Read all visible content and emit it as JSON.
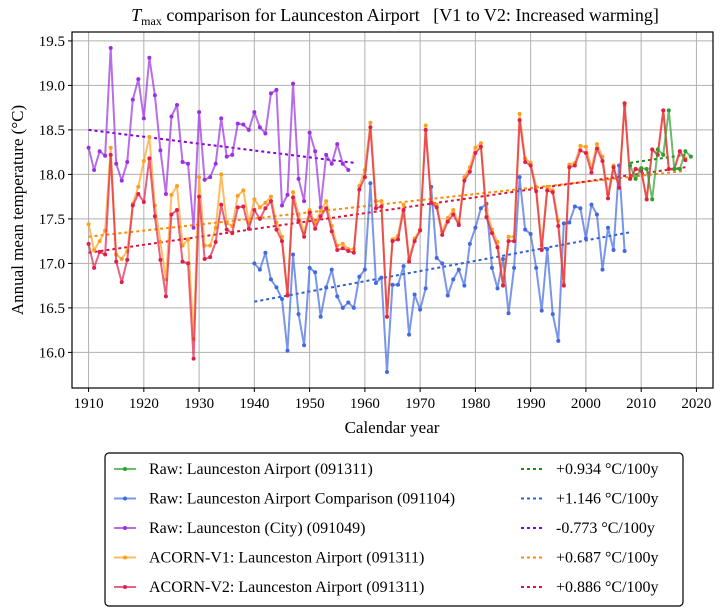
{
  "chart_data": {
    "type": "line",
    "title": "T_max comparison for Launceston Airport   [V1 to V2: Increased warming]",
    "title_parts": {
      "T": "T",
      "sub": "max",
      "rest": " comparison for Launceston Airport   [V1 to V2: Increased warming]"
    },
    "xlabel": "Calendar year",
    "ylabel": "Annual mean temperature (°C)",
    "xlim": [
      1907,
      2023
    ],
    "ylim": [
      15.6,
      19.6
    ],
    "grid": true,
    "legend_position": "below",
    "xticks": [
      1910,
      1920,
      1930,
      1940,
      1950,
      1960,
      1970,
      1980,
      1990,
      2000,
      2010,
      2020
    ],
    "yticks": [
      "16.0",
      "16.5",
      "17.0",
      "17.5",
      "18.0",
      "18.5",
      "19.0",
      "19.5"
    ],
    "series": [
      {
        "name": "Raw: Launceston Airport (091311)",
        "color": "#2ca02c",
        "x_start": 2008,
        "values": [
          18.1,
          17.95,
          18.07,
          18.06,
          17.72,
          18.28,
          18.22,
          18.72,
          18.06,
          18.06,
          18.26,
          18.2
        ]
      },
      {
        "name": "Raw: Launceston Airport Comparison (091104)",
        "color": "#4169e1",
        "x_start": 1940,
        "values": [
          17.0,
          16.93,
          17.12,
          16.82,
          16.73,
          16.6,
          16.02,
          17.1,
          16.43,
          16.08,
          16.95,
          16.9,
          16.4,
          16.73,
          16.93,
          16.63,
          16.5,
          16.56,
          16.5,
          16.85,
          16.93,
          17.9,
          16.78,
          16.84,
          15.78,
          16.76,
          16.76,
          16.97,
          16.2,
          16.65,
          16.48,
          16.72,
          17.86,
          17.06,
          17.0,
          16.64,
          16.82,
          16.93,
          16.75,
          17.22,
          17.4,
          17.62,
          17.67,
          16.95,
          16.72,
          17.05,
          16.44,
          16.95,
          17.97,
          17.38,
          17.33,
          16.95,
          16.47,
          17.16,
          16.43,
          16.13,
          17.45,
          17.46,
          17.64,
          17.62,
          17.28,
          17.66,
          17.55,
          16.93,
          17.4,
          17.15,
          18.1,
          17.14
        ]
      },
      {
        "name": "Raw: Launceston (City) (091049)",
        "color": "#9b30e0",
        "x_start": 1910,
        "values": [
          18.3,
          18.05,
          18.26,
          18.21,
          19.42,
          18.12,
          17.93,
          18.14,
          18.84,
          19.07,
          18.63,
          19.31,
          18.89,
          18.27,
          17.78,
          18.65,
          18.78,
          18.14,
          18.12,
          17.4,
          18.7,
          17.94,
          17.97,
          18.12,
          18.63,
          18.2,
          18.22,
          18.57,
          18.56,
          18.5,
          18.7,
          18.53,
          18.46,
          18.91,
          18.95,
          17.65,
          17.77,
          19.02,
          17.95,
          17.7,
          18.47,
          18.26,
          17.63,
          18.22,
          18.12,
          18.34,
          18.12,
          18.05
        ]
      },
      {
        "name": "ACORN-V1: Launceston Airport (091311)",
        "color": "#ff9f1c",
        "x_start": 1910,
        "values": [
          17.44,
          17.15,
          17.25,
          17.37,
          18.3,
          17.1,
          17.05,
          17.14,
          17.67,
          17.86,
          18.15,
          18.42,
          17.65,
          17.24,
          16.82,
          17.77,
          17.87,
          17.2,
          17.27,
          16.15,
          17.97,
          17.2,
          17.2,
          17.4,
          18.0,
          17.45,
          17.42,
          17.76,
          17.82,
          17.46,
          17.72,
          17.63,
          17.68,
          17.75,
          17.46,
          17.3,
          16.66,
          17.8,
          17.55,
          17.35,
          17.6,
          17.45,
          17.59,
          17.7,
          17.42,
          17.2,
          17.22,
          17.16,
          17.16,
          17.87,
          18.05,
          18.58,
          17.7,
          17.7,
          16.4,
          17.27,
          17.31,
          17.66,
          17.05,
          17.28,
          17.38,
          18.55,
          17.7,
          17.66,
          17.36,
          17.51,
          17.6,
          17.45,
          17.97,
          18.08,
          18.3,
          18.35,
          17.6,
          17.38,
          17.24,
          16.76,
          17.3,
          17.3,
          18.68,
          18.18,
          18.13,
          17.86,
          17.2,
          17.86,
          17.82,
          17.48,
          16.77,
          18.11,
          18.13,
          18.32,
          18.31,
          18.07,
          18.34,
          18.2,
          17.78,
          18.1,
          17.85,
          18.77,
          17.95,
          18.06,
          18.06,
          17.72,
          18.28,
          18.22,
          18.72,
          18.06,
          18.06,
          18.26,
          18.18
        ]
      },
      {
        "name": "ACORN-V2: Launceston Airport (091311)",
        "color": "#e0204a",
        "x_start": 1910,
        "values": [
          17.22,
          16.95,
          17.13,
          17.1,
          18.22,
          17.02,
          16.79,
          17.04,
          17.65,
          17.78,
          17.69,
          18.18,
          17.53,
          17.04,
          16.63,
          17.55,
          17.6,
          17.02,
          17.0,
          15.93,
          17.75,
          17.05,
          17.07,
          17.24,
          17.66,
          17.38,
          17.34,
          17.63,
          17.64,
          17.39,
          17.6,
          17.5,
          17.62,
          17.7,
          17.38,
          17.25,
          16.64,
          17.74,
          17.48,
          17.3,
          17.57,
          17.39,
          17.53,
          17.62,
          17.36,
          17.15,
          17.17,
          17.14,
          17.12,
          17.83,
          17.97,
          18.53,
          17.62,
          17.64,
          16.4,
          17.25,
          17.27,
          17.6,
          17.02,
          17.25,
          17.37,
          18.5,
          17.68,
          17.63,
          17.32,
          17.47,
          17.55,
          17.43,
          17.93,
          18.03,
          18.24,
          18.31,
          17.52,
          17.34,
          17.18,
          16.75,
          17.25,
          17.25,
          18.61,
          18.14,
          18.1,
          17.81,
          17.15,
          17.82,
          17.8,
          17.42,
          16.75,
          18.08,
          18.1,
          18.27,
          18.24,
          18.02,
          18.29,
          18.15,
          17.73,
          18.08,
          17.85,
          18.8,
          17.95,
          18.06,
          18.04,
          17.72,
          18.28,
          18.22,
          18.72,
          18.06,
          18.06,
          18.26,
          18.16
        ]
      }
    ],
    "trends": [
      {
        "label": "+0.934 °C/100y",
        "color": "#1a8a1a",
        "x": [
          2008,
          2018
        ],
        "y": [
          18.13,
          18.22
        ]
      },
      {
        "label": "+1.146 °C/100y",
        "color": "#3060d0",
        "x": [
          1940,
          2008
        ],
        "y": [
          16.57,
          17.35
        ]
      },
      {
        "label": "-0.773 °C/100y",
        "color": "#8a00d4",
        "x": [
          1910,
          1958
        ],
        "y": [
          18.5,
          18.13
        ]
      },
      {
        "label": "+0.687 °C/100y",
        "color": "#ff8c00",
        "x": [
          1910,
          2018
        ],
        "y": [
          17.3,
          18.04
        ]
      },
      {
        "label": "+0.886 °C/100y",
        "color": "#dc143c",
        "x": [
          1910,
          2018
        ],
        "y": [
          17.12,
          18.08
        ]
      }
    ]
  }
}
